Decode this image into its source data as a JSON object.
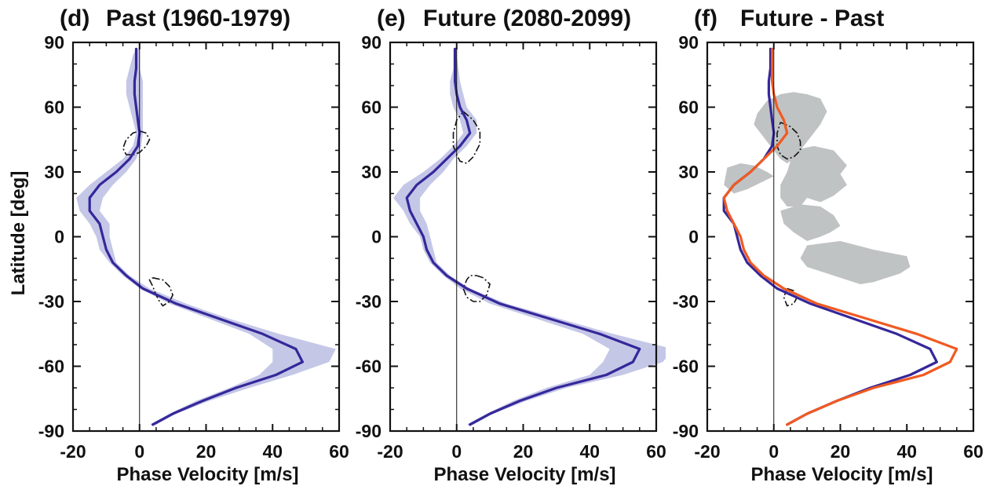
{
  "figure": {
    "ylabel": "Latitude [deg]",
    "colors": {
      "past_line": "#35279a",
      "future_line": "#35279a",
      "future_line_diff": "#f05a22",
      "spread": "#c5c7e7",
      "significance": "#bfc3c3",
      "contour": "#111111"
    }
  },
  "chart_data": [
    {
      "type": "line",
      "panel_label": "(d)",
      "title": "Past (1960-1979)",
      "xlabel": "Phase Velocity [m/s]",
      "ylabel": "Latitude [deg]",
      "xlim": [
        -20,
        60
      ],
      "ylim": [
        -90,
        90
      ],
      "x_ticks": [
        "-20",
        "0",
        "20",
        "40",
        "60"
      ],
      "y_ticks": [
        "-90",
        "-60",
        "-30",
        "0",
        "30",
        "60",
        "90"
      ],
      "zero_line_x": 0,
      "series": [
        {
          "lat": [
            -87,
            -82,
            -76,
            -70,
            -64,
            -58,
            -52,
            -45,
            -38,
            -31,
            -24,
            -18,
            -12,
            -6,
            0,
            6,
            12,
            18,
            24,
            30,
            36,
            42,
            48,
            54,
            60,
            66,
            72,
            78,
            84,
            87
          ],
          "x": [
            4,
            10,
            19,
            29,
            41,
            49,
            47,
            37,
            24,
            11,
            1,
            -4,
            -8,
            -10,
            -11,
            -12,
            -15,
            -15,
            -12,
            -7,
            -3,
            -0.5,
            0,
            -0.5,
            -1,
            -1.5,
            -1.5,
            -1,
            -1,
            -1
          ]
        }
      ],
      "spread": {
        "lat": [
          -87,
          -82,
          -76,
          -70,
          -64,
          -58,
          -52,
          -45,
          -38,
          -31,
          -24,
          -18,
          -12,
          -6,
          0,
          6,
          12,
          18,
          24,
          30,
          36,
          42,
          48,
          54,
          60,
          66,
          72,
          78,
          84,
          87
        ],
        "xmin": [
          3,
          9,
          17,
          27,
          36,
          40,
          40,
          33,
          21,
          9,
          0,
          -5,
          -9,
          -12,
          -13,
          -15,
          -18,
          -19,
          -15,
          -10,
          -5,
          -2,
          -1,
          -2,
          -3,
          -4,
          -4,
          -3,
          -2,
          -1
        ],
        "xmax": [
          5,
          11,
          21,
          33,
          46,
          57,
          59,
          42,
          27,
          14,
          3,
          -3,
          -7,
          -8,
          -9,
          -9,
          -12,
          -11,
          -8,
          -4,
          -1,
          0.5,
          1,
          1,
          1,
          1,
          1,
          0,
          0,
          0
        ]
      },
      "contours": [
        {
          "x": [
            0,
            2,
            3,
            2,
            0,
            -2,
            -4,
            -5,
            -4,
            -2,
            0
          ],
          "lat": [
            49,
            48,
            45,
            42,
            39,
            38,
            38,
            41,
            45,
            48,
            49
          ]
        },
        {
          "x": [
            4,
            7,
            9,
            10,
            9,
            7,
            6,
            5,
            4,
            3,
            4
          ],
          "lat": [
            -19,
            -20,
            -23,
            -27,
            -30,
            -32,
            -30,
            -27,
            -23,
            -20,
            -19
          ]
        }
      ]
    },
    {
      "type": "line",
      "panel_label": "(e)",
      "title": "Future (2080-2099)",
      "xlabel": "Phase Velocity [m/s]",
      "ylabel": "Latitude [deg]",
      "xlim": [
        -20,
        60
      ],
      "ylim": [
        -90,
        90
      ],
      "x_ticks": [
        "-20",
        "0",
        "20",
        "40",
        "60"
      ],
      "y_ticks": [
        "-90",
        "-60",
        "-30",
        "0",
        "30",
        "60",
        "90"
      ],
      "zero_line_x": 0,
      "series": [
        {
          "lat": [
            -87,
            -82,
            -76,
            -70,
            -64,
            -58,
            -52,
            -45,
            -38,
            -31,
            -24,
            -18,
            -12,
            -6,
            0,
            6,
            12,
            18,
            24,
            30,
            36,
            42,
            48,
            54,
            60,
            66,
            72,
            78,
            84,
            87
          ],
          "x": [
            4,
            10,
            19,
            30,
            45,
            53,
            55,
            43,
            28,
            13,
            3,
            -3,
            -7,
            -9,
            -10,
            -12,
            -14,
            -15,
            -12,
            -7,
            -3,
            1,
            4,
            3,
            1,
            0,
            -0.5,
            -0.5,
            -0.5,
            -0.5
          ]
        }
      ],
      "spread": {
        "lat": [
          -87,
          -82,
          -76,
          -70,
          -64,
          -58,
          -52,
          -45,
          -38,
          -31,
          -24,
          -18,
          -12,
          -6,
          0,
          6,
          12,
          18,
          24,
          30,
          36,
          42,
          48,
          54,
          60,
          66,
          72,
          78,
          84,
          87
        ],
        "xmin": [
          3,
          9,
          17,
          27,
          40,
          44,
          46,
          38,
          24,
          10,
          1,
          -4,
          -8,
          -10,
          -11,
          -14,
          -16,
          -19,
          -16,
          -10,
          -5,
          -1,
          2,
          1,
          -1,
          -2,
          -2,
          -1,
          -1,
          -1
        ],
        "xmax": [
          5,
          11,
          21,
          33,
          50,
          62,
          65,
          47,
          31,
          15,
          4,
          -2,
          -6,
          -7,
          -8,
          -9,
          -11,
          -11,
          -8,
          -4,
          -1,
          3,
          6,
          6,
          3,
          2,
          1,
          0.5,
          0,
          0
        ]
      },
      "contours": [
        {
          "x": [
            2,
            5,
            7,
            7,
            5,
            3,
            1,
            0,
            -1,
            -1,
            0,
            2
          ],
          "lat": [
            58,
            54,
            49,
            43,
            37,
            34,
            35,
            38,
            42,
            48,
            54,
            58
          ]
        },
        {
          "x": [
            6,
            8,
            10,
            9,
            7,
            5,
            3,
            2,
            3,
            4,
            6
          ],
          "lat": [
            -18,
            -19,
            -22,
            -27,
            -30,
            -30,
            -28,
            -24,
            -20,
            -18,
            -18
          ]
        }
      ]
    },
    {
      "type": "line",
      "panel_label": "(f)",
      "title": "Future - Past",
      "xlabel": "Phase Velocity [m/s]",
      "ylabel": "Latitude [deg]",
      "xlim": [
        -20,
        60
      ],
      "ylim": [
        -90,
        90
      ],
      "x_ticks": [
        "-20",
        "0",
        "20",
        "40",
        "60"
      ],
      "y_ticks": [
        "-90",
        "-60",
        "-30",
        "0",
        "30",
        "60",
        "90"
      ],
      "zero_line_x": 0,
      "series": [
        {
          "lat": [
            -87,
            -82,
            -76,
            -70,
            -64,
            -58,
            -52,
            -45,
            -38,
            -31,
            -24,
            -18,
            -12,
            -6,
            0,
            6,
            12,
            18,
            24,
            30,
            36,
            42,
            48,
            54,
            60,
            66,
            72,
            78,
            84,
            87
          ],
          "x": [
            4,
            10,
            19,
            29,
            41,
            49,
            47,
            37,
            24,
            11,
            1,
            -4,
            -8,
            -10,
            -11,
            -12,
            -15,
            -15,
            -12,
            -7,
            -3,
            -0.5,
            0,
            -0.5,
            -1,
            -1.5,
            -1.5,
            -1,
            -1,
            -1
          ]
        },
        {
          "lat": [
            -87,
            -82,
            -76,
            -70,
            -64,
            -58,
            -52,
            -45,
            -38,
            -31,
            -24,
            -18,
            -12,
            -6,
            0,
            6,
            12,
            18,
            24,
            30,
            36,
            42,
            48,
            54,
            60,
            66,
            72,
            78,
            84,
            87
          ],
          "x": [
            4,
            10,
            19,
            30,
            45,
            53,
            55,
            43,
            28,
            13,
            3,
            -3,
            -7,
            -9,
            -10,
            -12,
            -14,
            -15,
            -12,
            -7,
            -3,
            1,
            4,
            3,
            1,
            0,
            -0.5,
            -0.5,
            -0.5,
            -0.5
          ]
        }
      ],
      "significance_patches": [
        {
          "x": [
            -2,
            2,
            6,
            10,
            14,
            16,
            14,
            12,
            10,
            8,
            6,
            4,
            2,
            0,
            -2,
            -4,
            -6,
            -5,
            -3,
            -2
          ],
          "lat": [
            63,
            66,
            67,
            66,
            64,
            58,
            52,
            48,
            44,
            40,
            36,
            34,
            36,
            40,
            44,
            48,
            52,
            57,
            61,
            63
          ]
        },
        {
          "x": [
            6,
            12,
            18,
            22,
            20,
            22,
            18,
            14,
            10,
            8,
            4,
            2,
            2,
            4,
            6
          ],
          "lat": [
            40,
            42,
            40,
            33,
            29,
            24,
            19,
            16,
            18,
            14,
            14,
            18,
            24,
            30,
            40
          ]
        },
        {
          "x": [
            -14,
            -10,
            -6,
            -2,
            0,
            -4,
            -8,
            -12,
            -15,
            -14
          ],
          "lat": [
            32,
            34,
            33,
            30,
            28,
            25,
            22,
            20,
            24,
            32
          ]
        },
        {
          "x": [
            2,
            8,
            14,
            18,
            20,
            17,
            14,
            10,
            6,
            3,
            2
          ],
          "lat": [
            12,
            15,
            14,
            10,
            5,
            2,
            0,
            -2,
            2,
            6,
            12
          ]
        },
        {
          "x": [
            10,
            20,
            30,
            40,
            41,
            38,
            34,
            30,
            26,
            22,
            18,
            14,
            10,
            8,
            10
          ],
          "lat": [
            -4,
            -2,
            -6,
            -9,
            -14,
            -17,
            -19,
            -21,
            -22,
            -20,
            -18,
            -16,
            -14,
            -10,
            -4
          ]
        }
      ],
      "contours": [
        {
          "x": [
            2,
            5,
            7,
            8,
            8,
            6,
            4,
            2,
            1,
            1,
            2
          ],
          "lat": [
            53,
            51,
            48,
            44,
            40,
            37,
            36,
            38,
            42,
            48,
            53
          ]
        },
        {
          "x": [
            4,
            6,
            7,
            6,
            4,
            3,
            4
          ],
          "lat": [
            -24,
            -25,
            -28,
            -31,
            -32,
            -28,
            -24
          ]
        }
      ]
    }
  ]
}
